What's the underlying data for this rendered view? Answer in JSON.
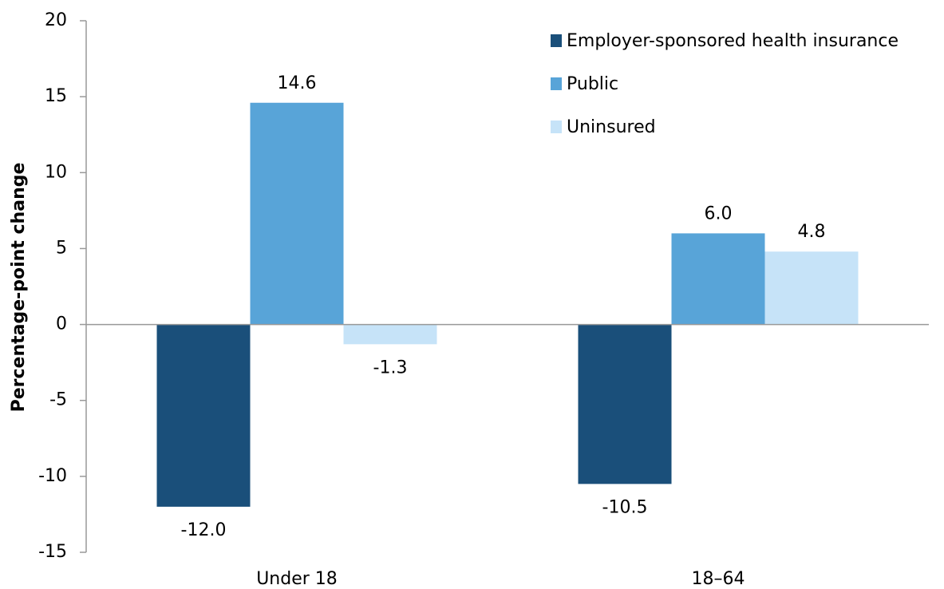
{
  "chart_data": {
    "type": "bar",
    "y_label": "Percentage-point change",
    "categories": [
      "Under 18",
      "18–64"
    ],
    "series": [
      {
        "name": "Employer-sponsored health insurance",
        "color": "#1a4f7a",
        "values": [
          -12.0,
          -10.5
        ],
        "value_labels": [
          "-12.0",
          "-10.5"
        ]
      },
      {
        "name": "Public",
        "color": "#58a4d8",
        "values": [
          14.6,
          6.0
        ],
        "value_labels": [
          "14.6",
          "6.0"
        ]
      },
      {
        "name": "Uninsured",
        "color": "#c6e3f8",
        "values": [
          -1.3,
          4.8
        ],
        "value_labels": [
          "-1.3",
          "4.8"
        ]
      }
    ],
    "ylim": [
      -15,
      20
    ],
    "yticks": [
      -15,
      -10,
      -5,
      0,
      5,
      10,
      15,
      20
    ],
    "legend": "top-right"
  }
}
